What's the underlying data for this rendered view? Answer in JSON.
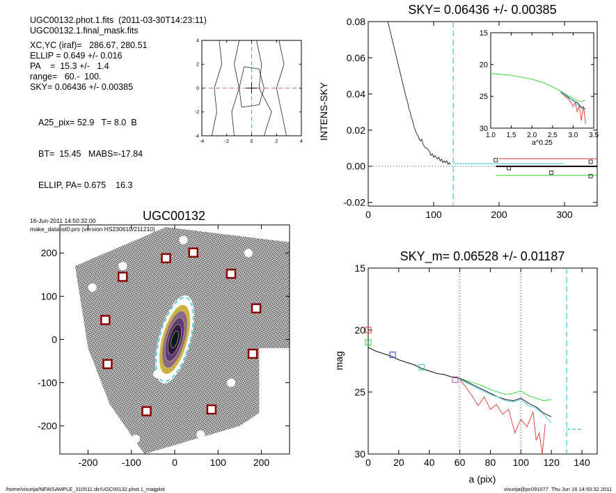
{
  "info": {
    "lines": [
      "UGC00132.phot.1.fits  (2011-03-30T14:23:11)",
      "UGC00132.1.final_mask.fits",
      "XC,YC (iraf)=   286.67, 280.51",
      "ELLIP = 0.649 +/- 0.016",
      "PA    =  15.3 +/-   1.4",
      "range=   60.-  100.",
      "SKY= 0.06436 +/- 0.00385",
      "A25_pix= 52.9   T= 8.0  B",
      "BT=  15.45   MABS=-17.84",
      "ELLIP, PA= 0.675    16.3",
      "16-Jun-2011 14:50:32.00",
      "make_datalist0.pro (version HS230610/211210)"
    ]
  },
  "footer": {
    "left": "/home/visurija/NEWSAMPLE_310511.dir/UGC00132.phot.1_magplot",
    "right": "visurija@pc091077  Thu Jun 16 14:50:32 2011"
  },
  "chart_data": [
    {
      "type": "line",
      "subtitle": "centroid contour plot",
      "title": "",
      "xlim": [
        -4,
        4
      ],
      "ylim": [
        -4,
        4
      ],
      "xticks": [
        -4,
        -2,
        0,
        2,
        4
      ],
      "yticks": [
        -4,
        -2,
        0,
        2,
        4
      ],
      "crosshair": [
        0,
        0
      ],
      "contours": [
        [
          [
            -3.2,
            -4
          ],
          [
            -2.8,
            -2
          ],
          [
            -3.0,
            0
          ],
          [
            -2.4,
            2
          ],
          [
            -2.6,
            4
          ]
        ],
        [
          [
            -1.4,
            -4
          ],
          [
            -1.6,
            -2
          ],
          [
            -1.0,
            0
          ],
          [
            -1.4,
            2
          ],
          [
            -1.0,
            4
          ]
        ],
        [
          [
            1.0,
            -4
          ],
          [
            1.6,
            -2
          ],
          [
            0.6,
            0
          ],
          [
            0.8,
            2
          ],
          [
            0.4,
            4
          ]
        ],
        [
          [
            2.8,
            -4
          ],
          [
            2.4,
            -2
          ],
          [
            2.0,
            0
          ],
          [
            2.6,
            2
          ],
          [
            2.2,
            4
          ]
        ],
        [
          [
            -0.8,
            -1.6
          ],
          [
            0.6,
            -1.4
          ],
          [
            1.0,
            0
          ],
          [
            0.6,
            1.6
          ],
          [
            -0.6,
            1.8
          ],
          [
            -1.0,
            0
          ],
          [
            -0.8,
            -1.6
          ]
        ]
      ]
    },
    {
      "type": "line",
      "title": "SKY= 0.06436 +/- 0.00385",
      "xlabel": "",
      "ylabel": "INTENS-SKY",
      "xlim": [
        0,
        350
      ],
      "ylim": [
        -0.022,
        0.08
      ],
      "xticks": [
        0,
        100,
        200,
        300
      ],
      "yticks": [
        -0.02,
        0.0,
        0.02,
        0.04,
        0.06,
        0.08
      ],
      "ytick_labels": [
        "-0.02",
        "0.00",
        "0.02",
        "0.04",
        "0.06",
        "0.08"
      ],
      "vline": 130,
      "series": [
        {
          "color": "#000000",
          "x": [
            30,
            32,
            34,
            36,
            38,
            40,
            42,
            44,
            46,
            48,
            50,
            52,
            54,
            56,
            58,
            60,
            62,
            64,
            66,
            68,
            70,
            72,
            74,
            76,
            78,
            80,
            82,
            84,
            86,
            88,
            90,
            92,
            94,
            96,
            98,
            100,
            102,
            104,
            106,
            108,
            110,
            112,
            114,
            116,
            118,
            120,
            122,
            124,
            126
          ],
          "y": [
            0.08,
            0.077,
            0.074,
            0.071,
            0.068,
            0.065,
            0.062,
            0.059,
            0.056,
            0.053,
            0.05,
            0.047,
            0.044,
            0.041,
            0.038,
            0.036,
            0.032,
            0.03,
            0.027,
            0.025,
            0.022,
            0.02,
            0.018,
            0.017,
            0.015,
            0.014,
            0.015,
            0.012,
            0.011,
            0.01,
            0.01,
            0.009,
            0.008,
            0.006,
            0.007,
            0.005,
            0.006,
            0.005,
            0.004,
            0.005,
            0.003,
            0.004,
            0.002,
            0.003,
            0.002,
            0.003,
            0.001,
            0.002,
            0.001
          ]
        }
      ],
      "sky_levels": [
        {
          "color": "#e53030",
          "x": [
            200,
            350
          ],
          "y": 0.0042
        },
        {
          "color": "#35c6e0",
          "x": [
            130,
            300
          ],
          "y": 0.0015
        },
        {
          "color": "#000000",
          "x": [
            195,
            350
          ],
          "y": 0.0
        },
        {
          "color": "#2bd02b",
          "x": [
            195,
            350
          ],
          "y": -0.005
        }
      ],
      "sky_squares": {
        "x": [
          195,
          215,
          280,
          340,
          340
        ],
        "y": [
          0.0035,
          -0.001,
          -0.0035,
          0.0025,
          -0.0055
        ]
      },
      "inset": {
        "xlabel": "a^0.25",
        "xlim": [
          1.0,
          3.5
        ],
        "ylim": [
          30,
          15
        ],
        "xticks": [
          1.0,
          1.5,
          2.0,
          2.5,
          3.0,
          3.5
        ],
        "xtick_labels": [
          "1.0",
          "1.5",
          "2.0",
          "2.5",
          "3.0",
          "3.5"
        ],
        "yticks": [
          15,
          20,
          25,
          30
        ],
        "series": [
          {
            "color": "#2bd02b",
            "x": [
              1.0,
              1.5,
              2.0,
              2.3,
              2.5,
              2.7,
              2.9,
              3.0,
              3.1,
              3.2,
              3.3
            ],
            "y": [
              21.4,
              21.7,
              22.3,
              22.9,
              23.5,
              24.2,
              25.0,
              25.3,
              25.7,
              25.8,
              25.6
            ]
          },
          {
            "color": "#000000",
            "x": [
              2.7,
              2.9,
              3.0,
              3.1,
              3.2,
              3.3
            ],
            "y": [
              24.3,
              25.2,
              25.7,
              26.0,
              26.7,
              27.0
            ]
          },
          {
            "color": "#e53030",
            "x": [
              2.7,
              2.9,
              3.0,
              3.05,
              3.1,
              3.15,
              3.2,
              3.25,
              3.3
            ],
            "y": [
              24.4,
              25.5,
              26.6,
              26.0,
              27.4,
              26.5,
              28.8,
              26.5,
              29.3
            ]
          },
          {
            "color": "#35c6e0",
            "x": [
              2.7,
              2.9,
              3.0,
              3.1,
              3.2,
              3.3
            ],
            "y": [
              24.3,
              25.3,
              25.6,
              26.3,
              26.8,
              27.5
            ]
          }
        ]
      }
    },
    {
      "type": "heatmap",
      "title": "UGC00132",
      "xlim": [
        -265,
        265
      ],
      "ylim": [
        -265,
        265
      ],
      "xticks": [
        -200,
        -100,
        0,
        100,
        200
      ],
      "yticks": [
        -200,
        -100,
        0,
        100,
        200
      ],
      "ellipse": {
        "center": [
          0,
          0
        ],
        "a": 100,
        "pa": 15.3,
        "ellip": 0.649
      },
      "mask_squares": [
        [
          -20,
          188
        ],
        [
          43,
          201
        ],
        [
          -120,
          145
        ],
        [
          130,
          152
        ],
        [
          188,
          72
        ],
        [
          -160,
          45
        ],
        [
          180,
          -33
        ],
        [
          -155,
          -57
        ],
        [
          85,
          -162
        ],
        [
          -65,
          -166
        ]
      ]
    },
    {
      "type": "line",
      "title": "SKY_m=  0.06528 +/- 0.01187",
      "xlabel": "a (pix)",
      "ylabel": "mag",
      "xlim": [
        0,
        150
      ],
      "ylim": [
        30,
        15
      ],
      "xticks": [
        0,
        20,
        40,
        60,
        80,
        100,
        120,
        140
      ],
      "yticks": [
        15,
        20,
        25,
        30
      ],
      "vlines_dotted": [
        60,
        100
      ],
      "vline_dashed": 130,
      "series": [
        {
          "color": "#2bd02b",
          "x": [
            0,
            5,
            10,
            15,
            20,
            25,
            30,
            35,
            40,
            45,
            50,
            55,
            60,
            65,
            70,
            75,
            80,
            85,
            90,
            95,
            100,
            105,
            110,
            115,
            120
          ],
          "y": [
            21.4,
            21.7,
            21.9,
            22.1,
            22.4,
            22.6,
            22.8,
            23.1,
            23.3,
            23.5,
            23.6,
            23.8,
            23.9,
            24.1,
            24.3,
            24.5,
            24.8,
            25.0,
            25.2,
            25.1,
            24.9,
            25.3,
            25.5,
            25.7,
            25.6
          ]
        },
        {
          "color": "#000000",
          "x": [
            0,
            5,
            10,
            15,
            20,
            25,
            30,
            35,
            40,
            45,
            50,
            55,
            60,
            65,
            70,
            75,
            80,
            85,
            90,
            95,
            100,
            105,
            110,
            115,
            120
          ],
          "y": [
            21.4,
            21.7,
            21.9,
            22.1,
            22.4,
            22.6,
            22.8,
            23.1,
            23.3,
            23.5,
            23.6,
            23.8,
            23.9,
            24.2,
            24.5,
            24.8,
            25.1,
            25.4,
            25.6,
            25.7,
            25.5,
            25.9,
            26.2,
            26.7,
            27.0
          ]
        },
        {
          "color": "#35c6e0",
          "x": [
            60,
            65,
            70,
            75,
            80,
            85,
            90,
            95,
            100,
            105,
            110,
            115,
            120
          ],
          "y": [
            24.0,
            24.3,
            24.6,
            24.9,
            25.2,
            25.4,
            25.7,
            25.8,
            25.6,
            26.1,
            26.3,
            26.8,
            27.5
          ]
        },
        {
          "color": "#e53030",
          "x": [
            60,
            64,
            68,
            72,
            76,
            80,
            84,
            88,
            92,
            96,
            100,
            104,
            108,
            110,
            112,
            114,
            116
          ],
          "y": [
            24.0,
            24.6,
            25.3,
            26.1,
            25.4,
            26.4,
            26.0,
            26.8,
            26.4,
            28.3,
            27.2,
            27.8,
            26.6,
            28.9,
            28.3,
            30.0,
            27.6
          ]
        }
      ],
      "markers": [
        {
          "x": 0,
          "y": 20.0,
          "color": "#e53030"
        },
        {
          "x": 0,
          "y": 21.0,
          "color": "#2bd02b"
        },
        {
          "x": 16,
          "y": 22.0,
          "color": "#3a3ad0"
        },
        {
          "x": 35,
          "y": 23.0,
          "color": "#35c6e0"
        },
        {
          "x": 57,
          "y": 24.0,
          "color": "#c040c0"
        }
      ],
      "sky_segment": {
        "x": [
          130,
          140
        ],
        "y": 28.0,
        "color": "#35c6e0"
      }
    }
  ]
}
